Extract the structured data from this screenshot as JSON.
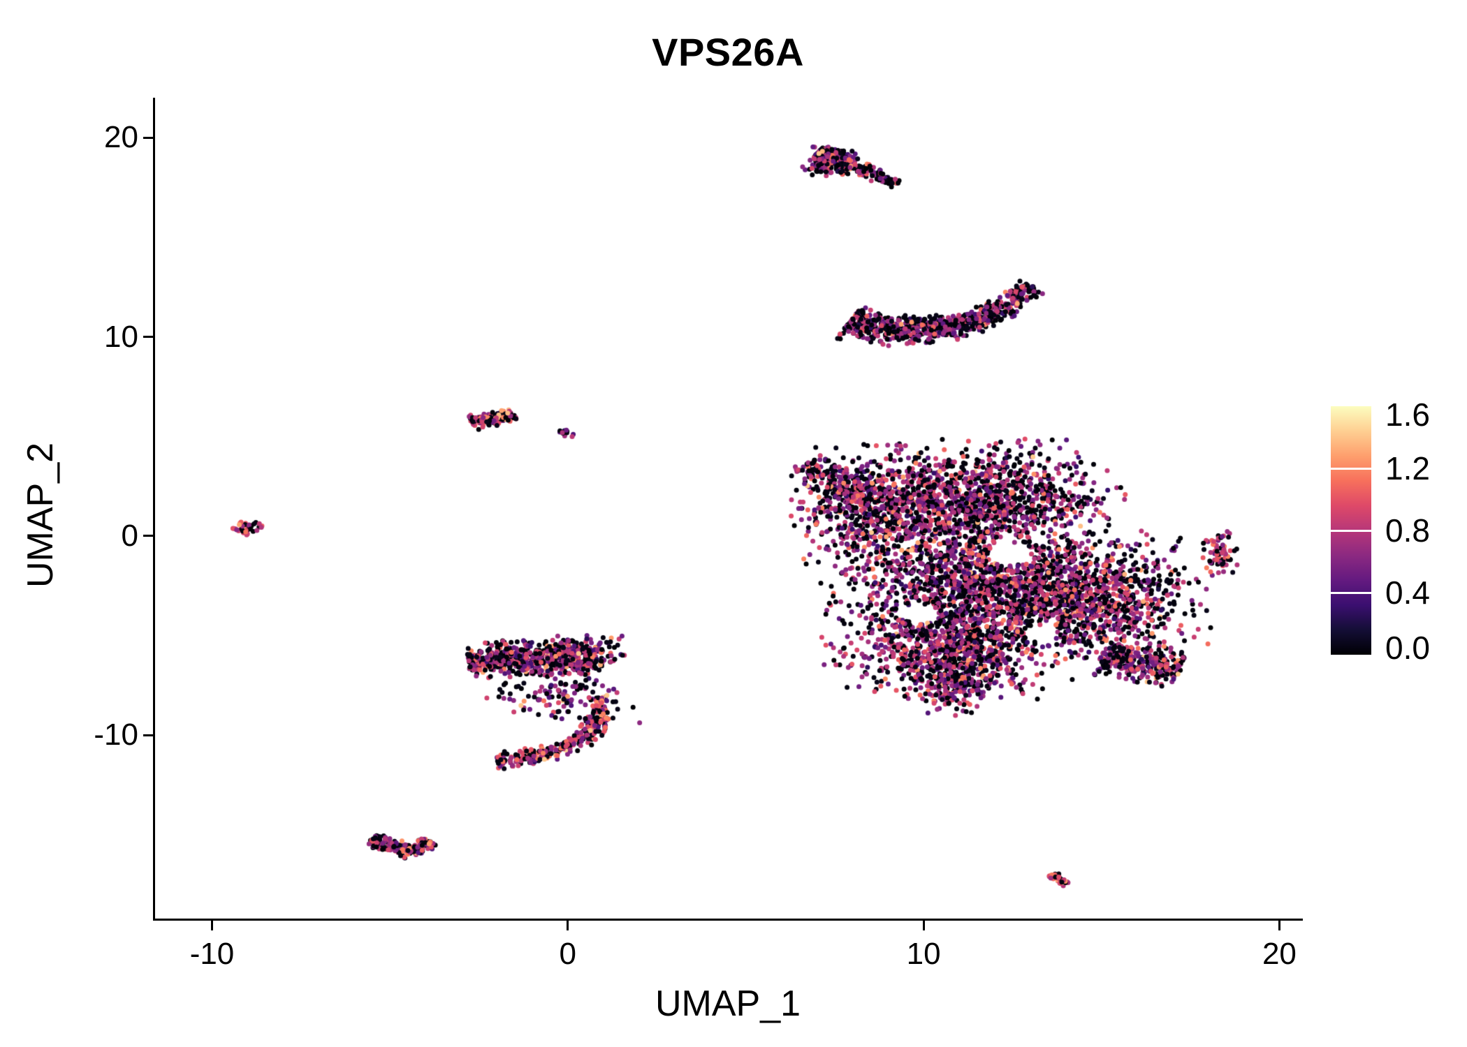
{
  "chart_data": {
    "type": "scatter",
    "title": "VPS26A",
    "xlabel": "UMAP_1",
    "ylabel": "UMAP_2",
    "x_domain": [
      -11.6,
      20.6
    ],
    "y_domain": [
      -19.2,
      22.0
    ],
    "x_ticks": [
      -10,
      0,
      10,
      20
    ],
    "x_tick_labels": [
      "-10",
      "0",
      "10",
      "20"
    ],
    "y_ticks": [
      -10,
      0,
      10,
      20
    ],
    "y_tick_labels": [
      "-10",
      "0",
      "10",
      "20"
    ],
    "grid": false,
    "background": "#ffffff",
    "axis_color": "#000000",
    "point_radius": 3.5,
    "seed": 42,
    "legend": {
      "position": "right",
      "range": [
        0,
        1.6
      ],
      "values": [
        1.6,
        1.2,
        0.8,
        0.4,
        0.0
      ],
      "labels": [
        "1.6",
        "1.2",
        "0.8",
        "0.4",
        "0.0"
      ]
    },
    "colormap": {
      "name": "magma",
      "stops": [
        "#000004",
        "#140e36",
        "#3b0f70",
        "#641a80",
        "#8c2981",
        "#b73779",
        "#de4968",
        "#f7705c",
        "#fe9f6d",
        "#fecf92",
        "#fcfdbf"
      ]
    },
    "voids": [
      {
        "x": 12.4,
        "y": -0.9,
        "r": 0.6
      },
      {
        "x": 9.9,
        "y": -3.9,
        "r": 0.5
      },
      {
        "x": 13.3,
        "y": -4.9,
        "r": 0.45
      }
    ],
    "clusters": [
      {
        "name": "top-comet-head",
        "shape": "blob",
        "cx": 7.35,
        "cy": 18.7,
        "sx": 0.32,
        "sy": 0.34,
        "n": 130,
        "values": {
          "p0": 0.5,
          "mean": 0.7,
          "sd": 0.22,
          "hi_p": 0.06
        }
      },
      {
        "name": "top-comet-tail",
        "shape": "bezier",
        "p0": [
          7.0,
          19.2
        ],
        "p1": [
          7.7,
          18.8
        ],
        "p2": [
          9.3,
          17.7
        ],
        "w": 0.26,
        "w2": 0.13,
        "skew": 1.6,
        "n": 230,
        "values": {
          "p0": 0.5,
          "mean": 0.7,
          "sd": 0.22,
          "hi_p": 0.05
        }
      },
      {
        "name": "crescent",
        "shape": "bezier",
        "p0": [
          7.9,
          10.7
        ],
        "p1": [
          11.0,
          9.3
        ],
        "p2": [
          13.1,
          12.6
        ],
        "w": 0.42,
        "w2": 0.2,
        "skew": 1.25,
        "n": 720,
        "values": {
          "p0": 0.52,
          "mean": 0.7,
          "sd": 0.22,
          "hi_p": 0.04
        }
      },
      {
        "name": "main-left-lobe",
        "shape": "blob",
        "cx": 8.7,
        "cy": 1.4,
        "sx": 1.0,
        "sy": 1.3,
        "n": 650,
        "values": {
          "p0": 0.42,
          "mean": 0.72,
          "sd": 0.22,
          "hi_p": 0.05
        }
      },
      {
        "name": "main-topleft-tip",
        "shape": "line",
        "a": [
          6.6,
          3.6
        ],
        "b": [
          8.3,
          2.2
        ],
        "w": 0.35,
        "n": 150,
        "values": {
          "p0": 0.42,
          "mean": 0.72,
          "sd": 0.22,
          "hi_p": 0.05
        }
      },
      {
        "name": "main-top-lobe",
        "shape": "blob",
        "cx": 11.8,
        "cy": 1.9,
        "sx": 1.6,
        "sy": 1.2,
        "n": 1050,
        "values": {
          "p0": 0.42,
          "mean": 0.72,
          "sd": 0.22,
          "hi_p": 0.05
        }
      },
      {
        "name": "main-center",
        "shape": "blob",
        "cx": 11.3,
        "cy": -2.4,
        "sx": 1.7,
        "sy": 1.5,
        "n": 1350,
        "values": {
          "p0": 0.42,
          "mean": 0.72,
          "sd": 0.22,
          "hi_p": 0.05
        }
      },
      {
        "name": "main-right-lobe",
        "shape": "blob",
        "cx": 14.6,
        "cy": -3.2,
        "sx": 1.4,
        "sy": 1.4,
        "n": 1050,
        "values": {
          "p0": 0.42,
          "mean": 0.72,
          "sd": 0.22,
          "hi_p": 0.05
        }
      },
      {
        "name": "main-bottom-lobe",
        "shape": "blob",
        "cx": 10.7,
        "cy": -5.8,
        "sx": 1.4,
        "sy": 1.0,
        "n": 750,
        "values": {
          "p0": 0.42,
          "mean": 0.72,
          "sd": 0.22,
          "hi_p": 0.05
        }
      },
      {
        "name": "main-bottomright-arm",
        "shape": "line",
        "a": [
          15.0,
          -6.0
        ],
        "b": [
          17.2,
          -6.8
        ],
        "w": 0.45,
        "n": 280,
        "values": {
          "p0": 0.42,
          "mean": 0.72,
          "sd": 0.22,
          "hi_p": 0.05
        }
      },
      {
        "name": "main-bottom-tip",
        "shape": "blob",
        "cx": 10.8,
        "cy": -7.6,
        "sx": 0.6,
        "sy": 0.6,
        "n": 170,
        "values": {
          "p0": 0.42,
          "mean": 0.72,
          "sd": 0.22,
          "hi_p": 0.05
        }
      },
      {
        "name": "right-small",
        "shape": "blob",
        "cx": 18.3,
        "cy": -0.9,
        "sx": 0.22,
        "sy": 0.5,
        "n": 70,
        "values": {
          "p0": 0.35,
          "mean": 0.8,
          "sd": 0.2,
          "hi_p": 0.08
        }
      },
      {
        "name": "far-left",
        "shape": "line",
        "a": [
          -9.3,
          0.2
        ],
        "b": [
          -8.7,
          0.7
        ],
        "w": 0.16,
        "n": 45,
        "values": {
          "p0": 0.25,
          "mean": 0.9,
          "sd": 0.22,
          "hi_p": 0.15
        }
      },
      {
        "name": "midleft-strip",
        "shape": "line",
        "a": [
          -2.7,
          5.7
        ],
        "b": [
          -1.5,
          6.1
        ],
        "w": 0.18,
        "n": 160,
        "values": {
          "p0": 0.35,
          "mean": 0.8,
          "sd": 0.22,
          "hi_p": 0.1
        }
      },
      {
        "name": "midleft-speck",
        "shape": "blob",
        "cx": -0.1,
        "cy": 5.15,
        "sx": 0.13,
        "sy": 0.08,
        "n": 14,
        "values": {
          "p0": 0.5,
          "mean": 0.6,
          "sd": 0.2,
          "hi_p": 0.02
        }
      },
      {
        "name": "middle-blob",
        "shape": "line",
        "a": [
          -2.8,
          -6.25
        ],
        "b": [
          0.3,
          -6.0
        ],
        "w": 0.42,
        "n": 520,
        "values": {
          "p0": 0.45,
          "mean": 0.7,
          "sd": 0.22,
          "hi_p": 0.05
        }
      },
      {
        "name": "middle-blob-right",
        "shape": "blob",
        "cx": 0.5,
        "cy": -5.9,
        "sx": 0.5,
        "sy": 0.45,
        "n": 170,
        "values": {
          "p0": 0.45,
          "mean": 0.7,
          "sd": 0.22,
          "hi_p": 0.05
        }
      },
      {
        "name": "middle-scatter",
        "shape": "blob",
        "cx": -0.1,
        "cy": -7.9,
        "sx": 0.9,
        "sy": 0.7,
        "n": 130,
        "values": {
          "p0": 0.5,
          "mean": 0.65,
          "sd": 0.2,
          "hi_p": 0.04
        }
      },
      {
        "name": "middle-hook",
        "shape": "bezier",
        "p0": [
          0.9,
          -8.0
        ],
        "p1": [
          1.15,
          -10.9
        ],
        "p2": [
          -2.0,
          -11.3
        ],
        "w": 0.16,
        "w2": 0.22,
        "skew": 0.85,
        "n": 300,
        "values": {
          "p0": 0.35,
          "mean": 0.8,
          "sd": 0.22,
          "hi_p": 0.12
        }
      },
      {
        "name": "bottomleft-wedge-a",
        "shape": "line",
        "a": [
          -5.5,
          -15.2
        ],
        "b": [
          -4.4,
          -15.9
        ],
        "w": 0.17,
        "n": 120,
        "values": {
          "p0": 0.4,
          "mean": 0.75,
          "sd": 0.22,
          "hi_p": 0.08
        }
      },
      {
        "name": "bottomleft-wedge-b",
        "shape": "line",
        "a": [
          -4.4,
          -15.9
        ],
        "b": [
          -3.85,
          -15.35
        ],
        "w": 0.14,
        "n": 70,
        "values": {
          "p0": 0.4,
          "mean": 0.75,
          "sd": 0.22,
          "hi_p": 0.08
        }
      },
      {
        "name": "bottom-speck",
        "shape": "line",
        "a": [
          13.6,
          -17.0
        ],
        "b": [
          14.05,
          -17.5
        ],
        "w": 0.09,
        "n": 40,
        "values": {
          "p0": 0.25,
          "mean": 0.9,
          "sd": 0.2,
          "hi_p": 0.2
        }
      }
    ]
  }
}
